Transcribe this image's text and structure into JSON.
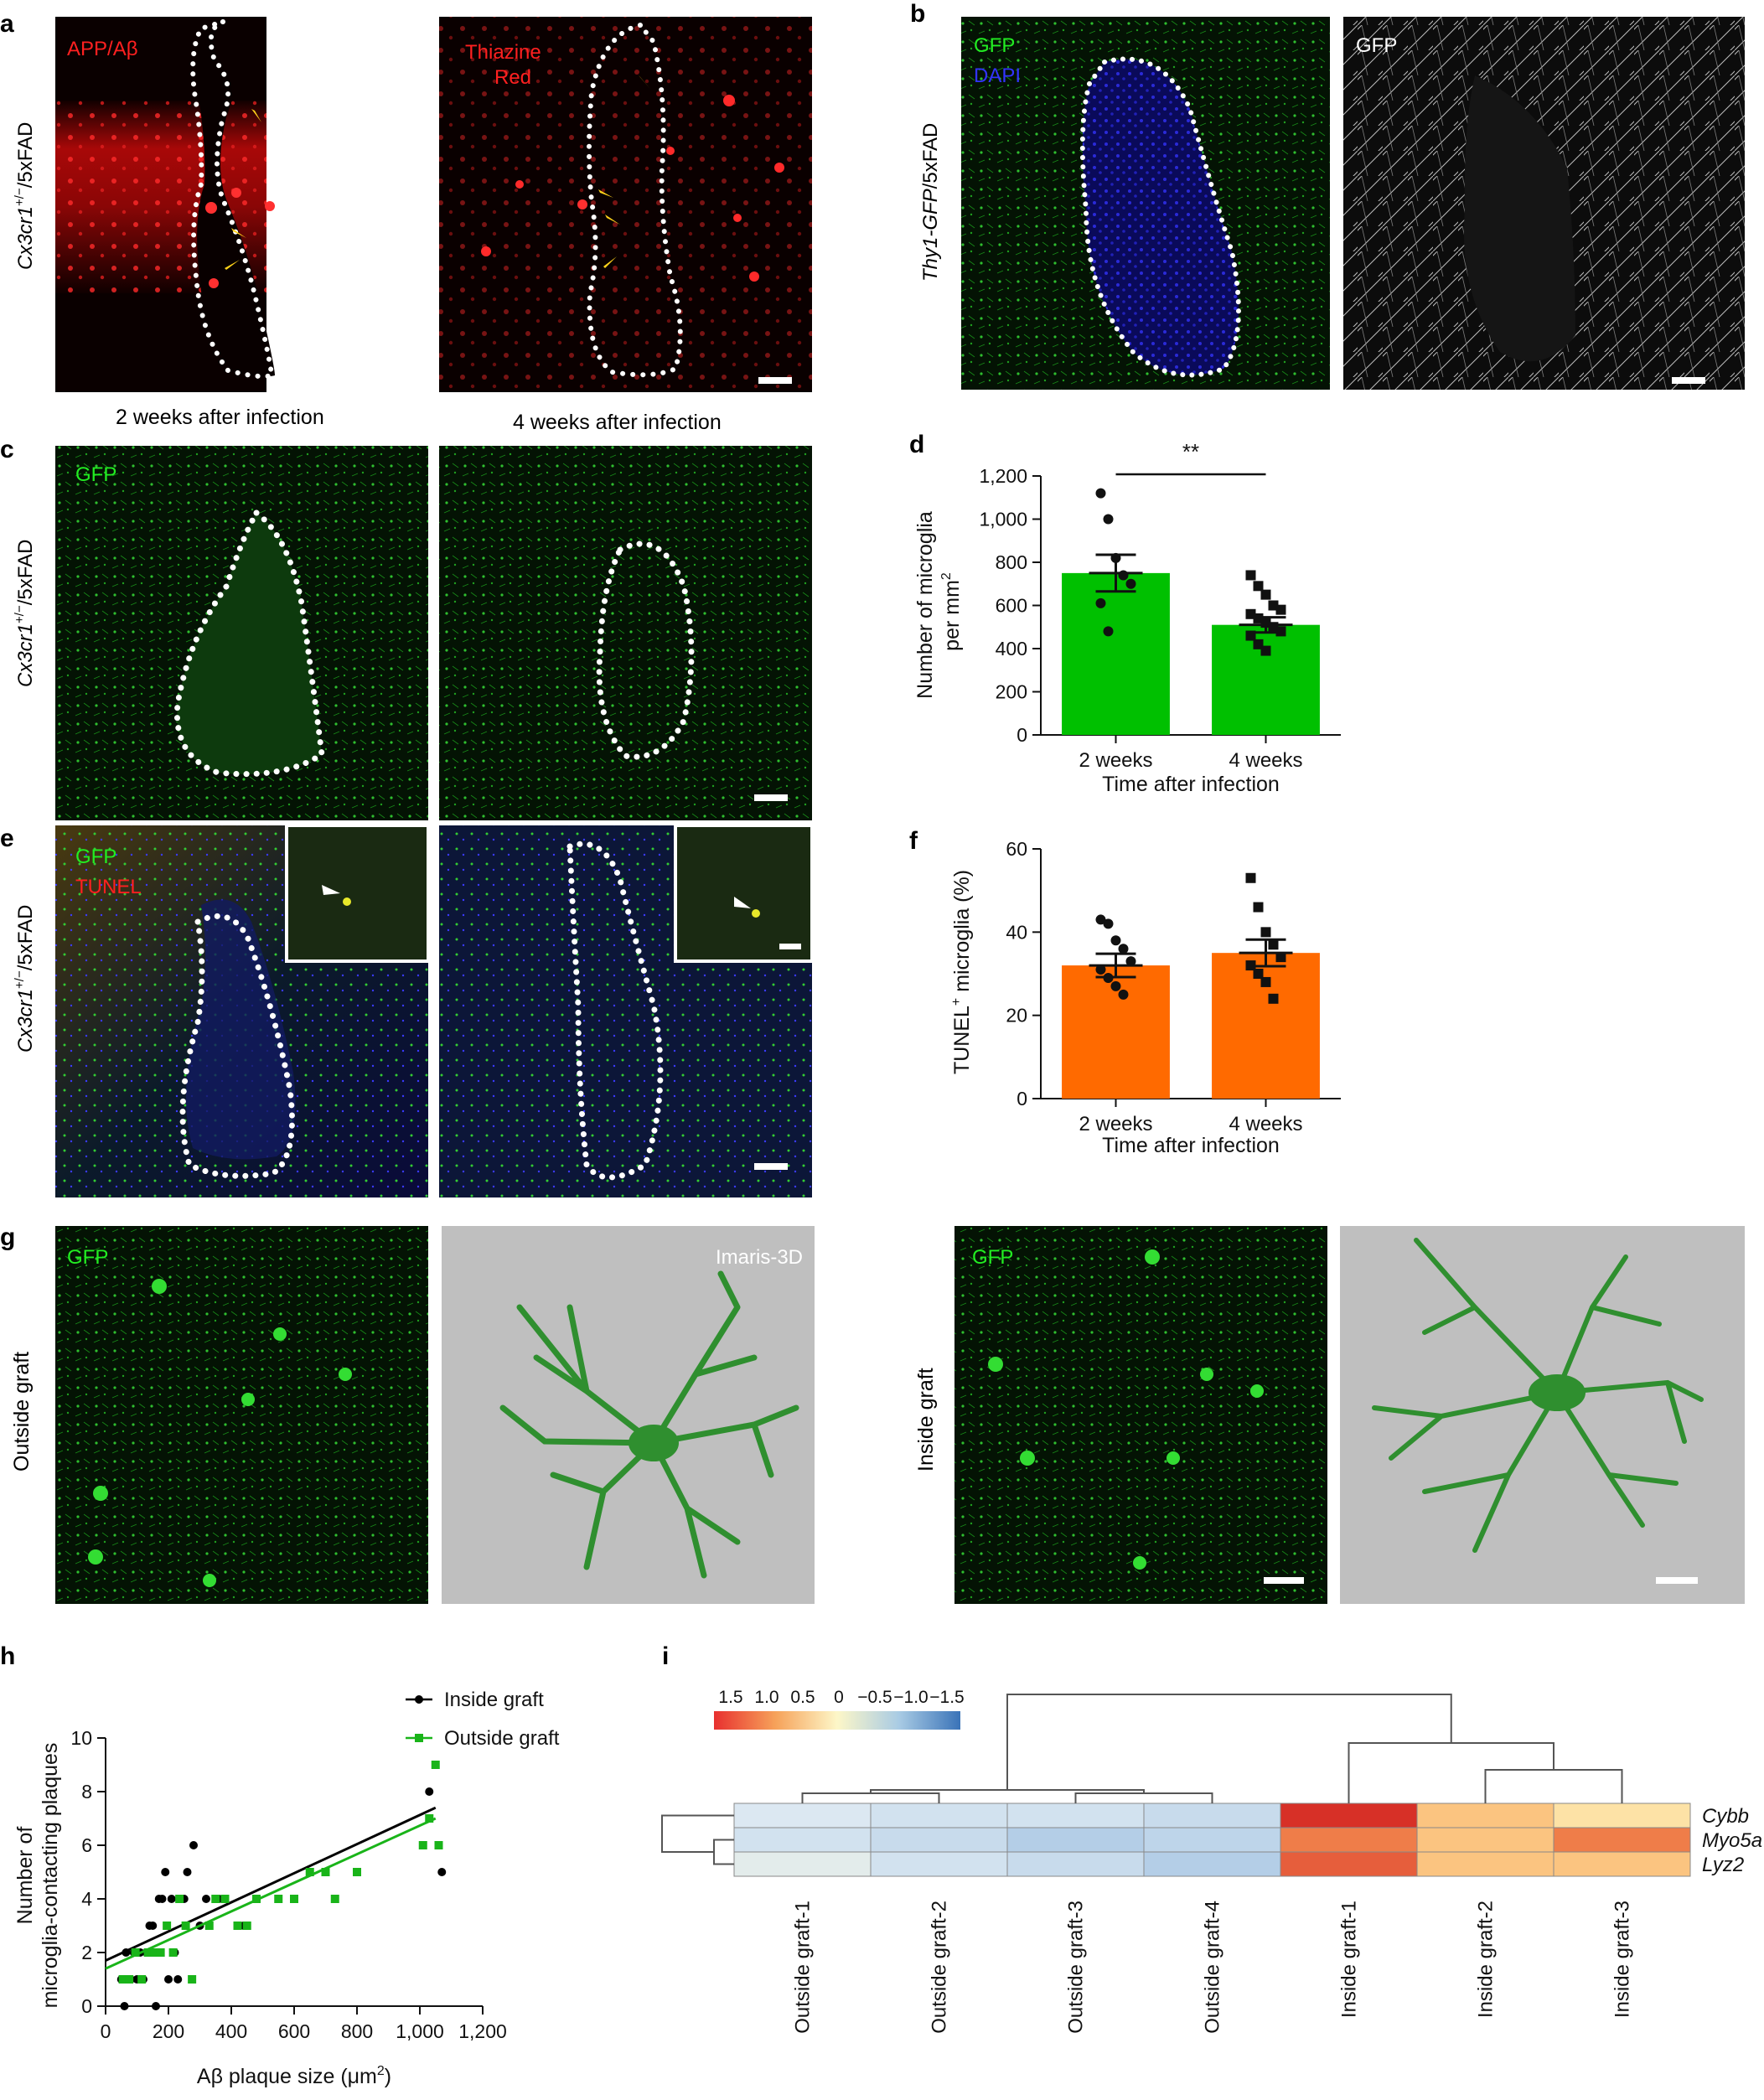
{
  "panels": {
    "a": {
      "letter": "a",
      "row_label_main": "Cx3cr1",
      "row_label_sup": "+/−",
      "row_label_rest": "/5xFAD",
      "image1_label": "APP/Aβ",
      "image2_label_line1": "Thiazine",
      "image2_label_line2": "Red",
      "caption1": "2 weeks after infection",
      "caption2": "4 weeks after infection"
    },
    "b": {
      "letter": "b",
      "row_label_main": "Thy1-GFP",
      "row_label_rest": "/5xFAD",
      "image1_label1": "GFP",
      "image1_label2": "DAPI",
      "image2_label": "GFP"
    },
    "c": {
      "letter": "c",
      "row_label_main": "Cx3cr1",
      "row_label_sup": "+/−",
      "row_label_rest": "/5xFAD",
      "image1_label": "GFP"
    },
    "e": {
      "letter": "e",
      "row_label_main": "Cx3cr1",
      "row_label_sup": "+/−",
      "row_label_rest": "/5xFAD",
      "image1_label1": "GFP",
      "image1_label2": "TUNEL"
    },
    "g": {
      "letter": "g",
      "left_row_label": "Outside graft",
      "right_row_label": "Inside graft",
      "gfp_label_left": "GFP",
      "gfp_label_right": "GFP",
      "render_label": "Imaris-3D"
    },
    "d_letter": "d",
    "f_letter": "f",
    "h_letter": "h",
    "i_letter": "i"
  },
  "colors": {
    "green_bar": "#00c000",
    "orange_bar": "#ff6a00",
    "gfp_green": "#22ee22",
    "red_label": "#ff2020",
    "dapi_blue": "#3333ff",
    "scatter_green": "#19b419"
  },
  "chart_data": [
    {
      "id": "d",
      "type": "bar",
      "categories": [
        "2 weeks",
        "4 weeks"
      ],
      "values": [
        750,
        510
      ],
      "errors": [
        85,
        35
      ],
      "points": [
        [
          1120,
          1000,
          820,
          740,
          700,
          610,
          480
        ],
        [
          740,
          690,
          650,
          600,
          580,
          560,
          540,
          520,
          500,
          480,
          460,
          420,
          390
        ]
      ],
      "ylabel_line1": "Number of microglia",
      "ylabel_line2": "per mm",
      "ylabel_sup": "2",
      "xlabel": "Time after infection",
      "yticks": [
        "0",
        "200",
        "400",
        "600",
        "800",
        "1,000",
        "1,200"
      ],
      "ylim": [
        0,
        1200
      ],
      "significance": "**"
    },
    {
      "id": "f",
      "type": "bar",
      "categories": [
        "2 weeks",
        "4 weeks"
      ],
      "values": [
        32,
        35
      ],
      "errors": [
        2.8,
        3.2
      ],
      "points": [
        [
          43,
          42,
          38,
          36,
          33,
          31,
          29,
          27,
          25
        ],
        [
          53,
          46,
          40,
          37,
          34,
          32,
          30,
          28,
          24
        ]
      ],
      "ylabel_main": "TUNEL",
      "ylabel_sup": "+",
      "ylabel_rest": " microglia (%)",
      "xlabel": "Time after infection",
      "yticks": [
        "0",
        "20",
        "40",
        "60"
      ],
      "ylim": [
        0,
        60
      ]
    },
    {
      "id": "h",
      "type": "scatter",
      "xlabel_main": "Aβ plaque size (μm",
      "xlabel_sup": "2",
      "xlabel_end": ")",
      "ylabel_line1": "Number of",
      "ylabel_line2": "microglia-contacting plaques",
      "xticks": [
        "0",
        "200",
        "400",
        "600",
        "800",
        "1,000",
        "1,200"
      ],
      "yticks": [
        "0",
        "2",
        "4",
        "6",
        "8",
        "10"
      ],
      "xlim": [
        0,
        1200
      ],
      "ylim": [
        0,
        10
      ],
      "series": [
        {
          "name": "Inside graft",
          "color": "#000000",
          "points": [
            [
              50,
              1
            ],
            [
              60,
              0
            ],
            [
              65,
              2
            ],
            [
              70,
              1
            ],
            [
              80,
              1
            ],
            [
              90,
              2
            ],
            [
              100,
              1
            ],
            [
              110,
              2
            ],
            [
              120,
              1
            ],
            [
              130,
              2
            ],
            [
              140,
              3
            ],
            [
              150,
              3
            ],
            [
              160,
              0
            ],
            [
              170,
              4
            ],
            [
              180,
              4
            ],
            [
              190,
              5
            ],
            [
              200,
              1
            ],
            [
              210,
              4
            ],
            [
              220,
              2
            ],
            [
              230,
              1
            ],
            [
              250,
              4
            ],
            [
              260,
              5
            ],
            [
              280,
              6
            ],
            [
              300,
              3
            ],
            [
              320,
              4
            ],
            [
              360,
              4
            ],
            [
              440,
              3
            ],
            [
              1030,
              8
            ],
            [
              1070,
              5
            ]
          ],
          "fit": [
            [
              0,
              1.7
            ],
            [
              1050,
              7.4
            ]
          ]
        },
        {
          "name": "Outside graft",
          "color": "#19b419",
          "points": [
            [
              55,
              1
            ],
            [
              75,
              1
            ],
            [
              95,
              2
            ],
            [
              115,
              1
            ],
            [
              135,
              2
            ],
            [
              155,
              2
            ],
            [
              175,
              2
            ],
            [
              195,
              3
            ],
            [
              215,
              2
            ],
            [
              235,
              4
            ],
            [
              255,
              3
            ],
            [
              275,
              1
            ],
            [
              330,
              3
            ],
            [
              350,
              4
            ],
            [
              380,
              4
            ],
            [
              420,
              3
            ],
            [
              450,
              3
            ],
            [
              480,
              4
            ],
            [
              550,
              4
            ],
            [
              600,
              4
            ],
            [
              650,
              5
            ],
            [
              700,
              5
            ],
            [
              730,
              4
            ],
            [
              800,
              5
            ],
            [
              1010,
              6
            ],
            [
              1030,
              7
            ],
            [
              1050,
              9
            ],
            [
              1060,
              6
            ]
          ],
          "fit": [
            [
              0,
              1.4
            ],
            [
              1050,
              7.0
            ]
          ]
        }
      ]
    },
    {
      "id": "i",
      "type": "heatmap",
      "columns": [
        "Outside graft-1",
        "Outside graft-2",
        "Outside graft-3",
        "Outside graft-4",
        "Inside graft-1",
        "Inside graft-2",
        "Inside graft-3"
      ],
      "rows": [
        "Cybb",
        "Myo5a",
        "Lyz2"
      ],
      "values": [
        [
          -0.5,
          -0.6,
          -0.6,
          -0.7,
          1.6,
          0.6,
          0.3
        ],
        [
          -0.6,
          -0.7,
          -0.9,
          -0.8,
          1.1,
          0.6,
          1.1
        ],
        [
          -0.4,
          -0.6,
          -0.7,
          -0.9,
          1.3,
          0.6,
          0.6
        ]
      ],
      "colorbar_ticks": [
        "1.5",
        "1.0",
        "0.5",
        "0",
        "−0.5",
        "−1.0",
        "−1.5"
      ]
    }
  ]
}
